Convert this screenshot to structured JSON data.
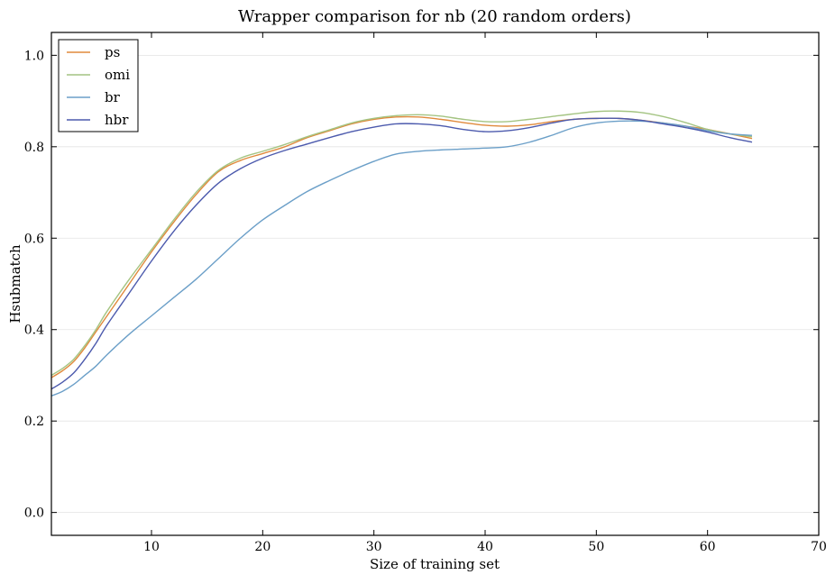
{
  "chart_data": {
    "type": "line",
    "title": "Wrapper comparison for nb (20 random orders)",
    "xlabel": "Size of training set",
    "ylabel": "Hsubmatch",
    "xlim": [
      1,
      70
    ],
    "ylim": [
      -0.05,
      1.05
    ],
    "xticks": [
      10,
      20,
      30,
      40,
      50,
      60,
      70
    ],
    "yticks": [
      0.0,
      0.2,
      0.4,
      0.6,
      0.8,
      1.0
    ],
    "grid": "horizontal",
    "legend_position": "top-left",
    "x": [
      1,
      2,
      3,
      4,
      5,
      6,
      8,
      10,
      12,
      14,
      16,
      18,
      20,
      22,
      24,
      26,
      28,
      30,
      32,
      34,
      36,
      38,
      40,
      42,
      44,
      46,
      48,
      50,
      52,
      54,
      56,
      58,
      60,
      62,
      64
    ],
    "series": [
      {
        "name": "ps",
        "color": "#e08a3c",
        "values": [
          0.295,
          0.31,
          0.33,
          0.36,
          0.395,
          0.43,
          0.5,
          0.57,
          0.635,
          0.695,
          0.745,
          0.77,
          0.785,
          0.8,
          0.82,
          0.835,
          0.85,
          0.86,
          0.865,
          0.865,
          0.86,
          0.853,
          0.847,
          0.845,
          0.848,
          0.855,
          0.86,
          0.862,
          0.862,
          0.858,
          0.852,
          0.845,
          0.838,
          0.828,
          0.818
        ]
      },
      {
        "name": "omi",
        "color": "#a4c482",
        "values": [
          0.3,
          0.315,
          0.335,
          0.365,
          0.4,
          0.44,
          0.51,
          0.575,
          0.64,
          0.7,
          0.748,
          0.775,
          0.79,
          0.805,
          0.822,
          0.837,
          0.852,
          0.862,
          0.868,
          0.87,
          0.867,
          0.86,
          0.855,
          0.855,
          0.86,
          0.866,
          0.872,
          0.877,
          0.878,
          0.875,
          0.866,
          0.853,
          0.838,
          0.828,
          0.822
        ]
      },
      {
        "name": "br",
        "color": "#6b9fc8",
        "values": [
          0.255,
          0.265,
          0.28,
          0.3,
          0.32,
          0.345,
          0.39,
          0.43,
          0.47,
          0.51,
          0.555,
          0.6,
          0.64,
          0.672,
          0.702,
          0.726,
          0.748,
          0.768,
          0.784,
          0.79,
          0.793,
          0.795,
          0.797,
          0.8,
          0.81,
          0.825,
          0.842,
          0.852,
          0.856,
          0.856,
          0.852,
          0.845,
          0.835,
          0.828,
          0.825
        ]
      },
      {
        "name": "hbr",
        "color": "#4c5aad",
        "values": [
          0.27,
          0.285,
          0.305,
          0.335,
          0.37,
          0.41,
          0.48,
          0.55,
          0.615,
          0.672,
          0.72,
          0.752,
          0.775,
          0.792,
          0.806,
          0.82,
          0.833,
          0.843,
          0.85,
          0.85,
          0.846,
          0.838,
          0.833,
          0.835,
          0.842,
          0.852,
          0.86,
          0.862,
          0.862,
          0.858,
          0.85,
          0.842,
          0.832,
          0.82,
          0.81
        ]
      }
    ]
  }
}
